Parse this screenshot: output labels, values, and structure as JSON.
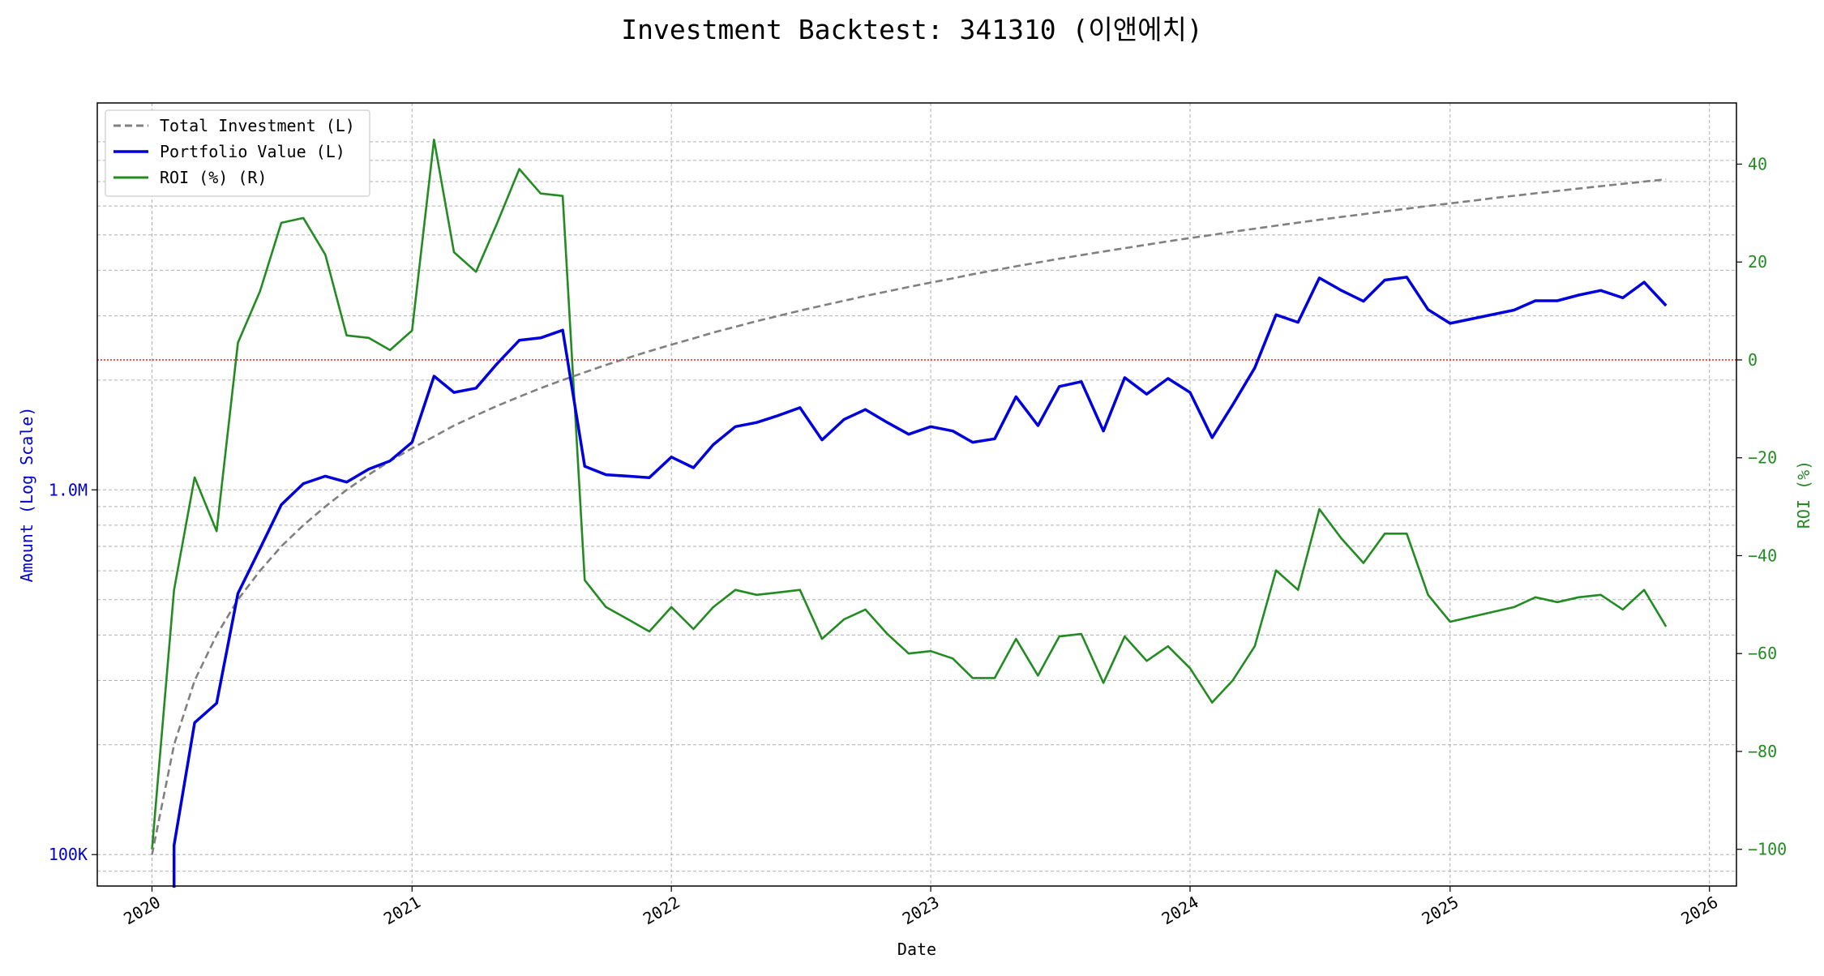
{
  "chart_data": {
    "type": "line",
    "title": "Investment Backtest: 341310 (이앤에치)",
    "xlabel": "Date",
    "ylabel_left": "Amount (Log Scale)",
    "ylabel_right": "ROI (%)",
    "x_ticks": [
      "2020",
      "2021",
      "2022",
      "2023",
      "2024",
      "2025",
      "2026"
    ],
    "y_left_ticks": [
      {
        "value": 100000,
        "label": "100K"
      },
      {
        "value": 1000000,
        "label": "1.0M"
      }
    ],
    "y_left_scale": "log",
    "y_left_range": [
      82000,
      11500000
    ],
    "y_right_ticks": [
      {
        "value": 40,
        "label": "40"
      },
      {
        "value": 20,
        "label": "20"
      },
      {
        "value": 0,
        "label": "0"
      },
      {
        "value": -20,
        "label": "−20"
      },
      {
        "value": -40,
        "label": "−40"
      },
      {
        "value": -60,
        "label": "−60"
      },
      {
        "value": -80,
        "label": "−80"
      },
      {
        "value": -100,
        "label": "−100"
      }
    ],
    "y_right_range": [
      -107.5,
      52.5
    ],
    "x_range": [
      "2019-10-16",
      "2026-02-08"
    ],
    "grid": true,
    "legend_position": "top-left",
    "reference_line": {
      "axis": "right",
      "value": 0,
      "color": "#ff0000",
      "style": "dotted"
    },
    "colors": {
      "total_investment": "#808080",
      "portfolio_value": "#0000dd",
      "roi": "#228b22"
    },
    "series": [
      {
        "name": "Total Investment (L)",
        "axis": "left",
        "style": "dashed",
        "x": [
          "2020-01-01",
          "2020-02-01",
          "2020-03-01",
          "2020-04-01",
          "2020-05-01",
          "2020-06-01",
          "2020-07-01",
          "2020-08-01",
          "2020-09-01",
          "2020-10-01",
          "2020-11-01",
          "2020-12-01",
          "2021-01-01",
          "2021-02-01",
          "2021-03-01",
          "2021-04-01",
          "2021-05-01",
          "2021-06-01",
          "2021-07-01",
          "2021-08-01",
          "2021-09-01",
          "2021-10-01",
          "2021-11-01",
          "2021-12-01",
          "2022-01-01",
          "2022-02-01",
          "2022-03-01",
          "2022-04-01",
          "2022-05-01",
          "2022-06-01",
          "2022-07-01",
          "2022-08-01",
          "2022-09-01",
          "2022-10-01",
          "2022-11-01",
          "2022-12-01",
          "2023-01-01",
          "2023-02-01",
          "2023-03-01",
          "2023-04-01",
          "2023-05-01",
          "2023-06-01",
          "2023-07-01",
          "2023-08-01",
          "2023-09-01",
          "2023-10-01",
          "2023-11-01",
          "2023-12-01",
          "2024-01-01",
          "2024-02-01",
          "2024-03-01",
          "2024-04-01",
          "2024-05-01",
          "2024-06-01",
          "2024-07-01",
          "2024-08-01",
          "2024-09-01",
          "2024-10-01",
          "2024-11-01",
          "2024-12-01",
          "2025-01-01",
          "2025-02-01",
          "2025-03-01",
          "2025-04-01",
          "2025-05-01",
          "2025-06-01",
          "2025-07-01",
          "2025-08-01",
          "2025-09-01",
          "2025-10-01",
          "2025-11-01"
        ],
        "values": [
          100000,
          200000,
          300000,
          400000,
          500000,
          600000,
          700000,
          800000,
          900000,
          1000000,
          1100000,
          1200000,
          1300000,
          1400000,
          1500000,
          1600000,
          1700000,
          1800000,
          1900000,
          2000000,
          2100000,
          2200000,
          2300000,
          2400000,
          2500000,
          2600000,
          2700000,
          2800000,
          2900000,
          3000000,
          3100000,
          3200000,
          3300000,
          3400000,
          3500000,
          3600000,
          3700000,
          3800000,
          3900000,
          4000000,
          4100000,
          4200000,
          4300000,
          4400000,
          4500000,
          4600000,
          4700000,
          4800000,
          4900000,
          5000000,
          5100000,
          5200000,
          5300000,
          5400000,
          5500000,
          5600000,
          5700000,
          5800000,
          5900000,
          6000000,
          6100000,
          6200000,
          6300000,
          6400000,
          6500000,
          6600000,
          6700000,
          6800000,
          6900000,
          7000000,
          7100000
        ]
      },
      {
        "name": "Portfolio Value (L)",
        "axis": "left",
        "style": "solid",
        "x": [
          "2020-02-01",
          "2020-03-01",
          "2020-04-01",
          "2020-05-01",
          "2020-06-01",
          "2020-07-01",
          "2020-08-01",
          "2020-09-01",
          "2020-10-01",
          "2020-11-01",
          "2020-12-01",
          "2021-01-01",
          "2021-02-01",
          "2021-03-01",
          "2021-04-01",
          "2021-05-01",
          "2021-06-01",
          "2021-07-01",
          "2021-08-01",
          "2021-09-01",
          "2021-10-01",
          "2021-11-01",
          "2021-12-01",
          "2022-01-01",
          "2022-02-01",
          "2022-03-01",
          "2022-04-01",
          "2022-05-01",
          "2022-06-01",
          "2022-07-01",
          "2022-08-01",
          "2022-09-01",
          "2022-10-01",
          "2022-11-01",
          "2022-12-01",
          "2023-01-01",
          "2023-02-01",
          "2023-03-01",
          "2023-04-01",
          "2023-05-01",
          "2023-06-01",
          "2023-07-01",
          "2023-08-01",
          "2023-09-01",
          "2023-10-01",
          "2023-11-01",
          "2023-12-01",
          "2024-01-01",
          "2024-02-01",
          "2024-03-01",
          "2024-04-01",
          "2024-05-01",
          "2024-06-01",
          "2024-07-01",
          "2024-08-01",
          "2024-09-01",
          "2024-10-01",
          "2024-11-01",
          "2024-12-01",
          "2025-01-01",
          "2025-04-01",
          "2025-05-01",
          "2025-06-01",
          "2025-07-01",
          "2025-08-01",
          "2025-09-01",
          "2025-10-01",
          "2025-11-01"
        ],
        "values": [
          106000,
          230000,
          260000,
          520000,
          690000,
          910000,
          1040000,
          1090000,
          1050000,
          1140000,
          1200000,
          1350000,
          2050000,
          1850000,
          1900000,
          2220000,
          2570000,
          2610000,
          2740000,
          1160000,
          1100000,
          1090000,
          1080000,
          1230000,
          1150000,
          1330000,
          1490000,
          1530000,
          1600000,
          1680000,
          1370000,
          1560000,
          1660000,
          1530000,
          1420000,
          1490000,
          1450000,
          1350000,
          1380000,
          1800000,
          1500000,
          1920000,
          1980000,
          1450000,
          2030000,
          1830000,
          2020000,
          1850000,
          1390000,
          1710000,
          2160000,
          3020000,
          2880000,
          3810000,
          3520000,
          3290000,
          3760000,
          3830000,
          3120000,
          2860000,
          3110000,
          3300000,
          3300000,
          3420000,
          3520000,
          3360000,
          3710000,
          3200000
        ]
      },
      {
        "name": "ROI (%) (R)",
        "axis": "right",
        "style": "solid",
        "x": [
          "2020-01-01",
          "2020-02-01",
          "2020-03-01",
          "2020-04-01",
          "2020-05-01",
          "2020-06-01",
          "2020-07-01",
          "2020-08-01",
          "2020-09-01",
          "2020-10-01",
          "2020-11-01",
          "2020-12-01",
          "2021-01-01",
          "2021-02-01",
          "2021-03-01",
          "2021-04-01",
          "2021-05-01",
          "2021-06-01",
          "2021-07-01",
          "2021-08-01",
          "2021-09-01",
          "2021-10-01",
          "2021-11-01",
          "2021-12-01",
          "2022-01-01",
          "2022-02-01",
          "2022-03-01",
          "2022-04-01",
          "2022-05-01",
          "2022-06-01",
          "2022-07-01",
          "2022-08-01",
          "2022-09-01",
          "2022-10-01",
          "2022-11-01",
          "2022-12-01",
          "2023-01-01",
          "2023-02-01",
          "2023-03-01",
          "2023-04-01",
          "2023-05-01",
          "2023-06-01",
          "2023-07-01",
          "2023-08-01",
          "2023-09-01",
          "2023-10-01",
          "2023-11-01",
          "2023-12-01",
          "2024-01-01",
          "2024-02-01",
          "2024-03-01",
          "2024-04-01",
          "2024-05-01",
          "2024-06-01",
          "2024-07-01",
          "2024-08-01",
          "2024-09-01",
          "2024-10-01",
          "2024-11-01",
          "2024-12-01",
          "2025-01-01",
          "2025-04-01",
          "2025-05-01",
          "2025-06-01",
          "2025-07-01",
          "2025-08-01",
          "2025-09-01",
          "2025-10-01",
          "2025-11-01"
        ],
        "values": [
          -100,
          -47,
          -24,
          -35,
          3.5,
          14,
          28,
          29,
          21.5,
          5,
          4.5,
          2,
          6,
          45,
          22,
          18,
          28,
          39,
          34,
          33.5,
          -45,
          -50.5,
          -53,
          -55.5,
          -50.5,
          -55,
          -50.5,
          -47,
          -48,
          -47.5,
          -47,
          -57,
          -53,
          -51,
          -56,
          -60,
          -59.5,
          -61,
          -65,
          -65,
          -57,
          -64.5,
          -56.5,
          -56,
          -66,
          -56.5,
          -61.5,
          -58.5,
          -63,
          -70,
          -65.5,
          -58.5,
          -43,
          -47,
          -30.5,
          -36.5,
          -41.5,
          -35.5,
          -35.5,
          -48,
          -53.5,
          -50.5,
          -48.5,
          -49.5,
          -48.5,
          -48,
          -51,
          -47,
          -54.5
        ]
      }
    ]
  }
}
